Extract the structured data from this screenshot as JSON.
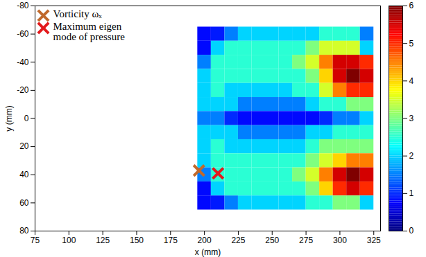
{
  "chart_data": {
    "type": "heatmap",
    "x_label": "x (mm)",
    "y_label": "y (mm)",
    "xlim": [
      75,
      330
    ],
    "xticks": [
      75,
      100,
      125,
      150,
      175,
      200,
      225,
      250,
      275,
      300,
      325
    ],
    "ylim": [
      80,
      -80
    ],
    "yticks": [
      -80,
      -60,
      -40,
      -20,
      0,
      20,
      40,
      60,
      80
    ],
    "x_bins": [
      195,
      205,
      215,
      225,
      235,
      245,
      255,
      265,
      275,
      285,
      295,
      305,
      315,
      325
    ],
    "y_bins": [
      -65,
      -55,
      -45,
      -35,
      -25,
      -15,
      -5,
      5,
      15,
      25,
      35,
      45,
      55,
      65
    ],
    "z": [
      [
        0.8,
        0.9,
        1.5,
        2,
        2,
        2,
        2,
        2,
        2,
        2.5,
        2.5,
        2.5,
        1.5
      ],
      [
        0.8,
        2,
        2.5,
        2.5,
        2.5,
        2.5,
        2.5,
        2.5,
        3,
        3.5,
        3.5,
        3.5,
        2
      ],
      [
        1.5,
        2.5,
        2.5,
        2.5,
        2.5,
        2.5,
        2.5,
        3,
        3.5,
        4.5,
        5.5,
        5.5,
        5
      ],
      [
        2,
        2.5,
        2.5,
        2.5,
        2.5,
        2.5,
        2.5,
        2.5,
        3,
        4,
        5.5,
        6,
        5.5
      ],
      [
        2,
        2.5,
        2,
        2,
        2,
        2,
        2,
        2.5,
        2.5,
        3.5,
        4.5,
        5,
        5
      ],
      [
        2,
        2,
        2,
        1.5,
        1.5,
        1.5,
        1.5,
        1.5,
        2,
        2.5,
        2.5,
        3,
        3
      ],
      [
        1.5,
        1.5,
        1,
        0.8,
        0.8,
        0.8,
        0.8,
        0.8,
        0.8,
        1,
        1.5,
        1.5,
        2
      ],
      [
        2,
        2,
        2,
        1.5,
        1.5,
        1.5,
        1.5,
        1.5,
        2,
        2,
        2.5,
        2.5,
        2.5
      ],
      [
        2,
        2.5,
        2,
        2,
        2,
        2,
        2,
        2,
        2.5,
        3,
        3,
        3,
        3
      ],
      [
        2,
        2.5,
        2.5,
        2.5,
        2.5,
        2.5,
        2.5,
        2.5,
        3,
        3.5,
        4,
        4.5,
        4.5
      ],
      [
        1.5,
        2.5,
        2.5,
        2.5,
        2.5,
        2.5,
        2.5,
        3,
        3.5,
        4.5,
        5.5,
        6,
        5.5
      ],
      [
        0.8,
        2,
        2.5,
        2.5,
        2.5,
        2.5,
        2.5,
        2.5,
        3,
        4,
        5,
        5.5,
        5
      ],
      [
        0.8,
        0.9,
        1.5,
        2,
        2,
        2,
        2,
        2,
        2.5,
        2.5,
        3,
        3,
        2
      ]
    ],
    "colorbar": {
      "range": [
        0,
        6
      ],
      "ticks": [
        0,
        1,
        2,
        3,
        4,
        5,
        6
      ]
    },
    "series": [
      {
        "name": "Vorticity ωₓ",
        "color": "#c0692c",
        "marker": "x",
        "x": [
          196
        ],
        "y": [
          37
        ]
      },
      {
        "name": "Maximum eigen mode of pressure",
        "color": "#e31a1c",
        "marker": "x",
        "x": [
          210
        ],
        "y": [
          39
        ]
      }
    ],
    "legend": "top-left"
  }
}
